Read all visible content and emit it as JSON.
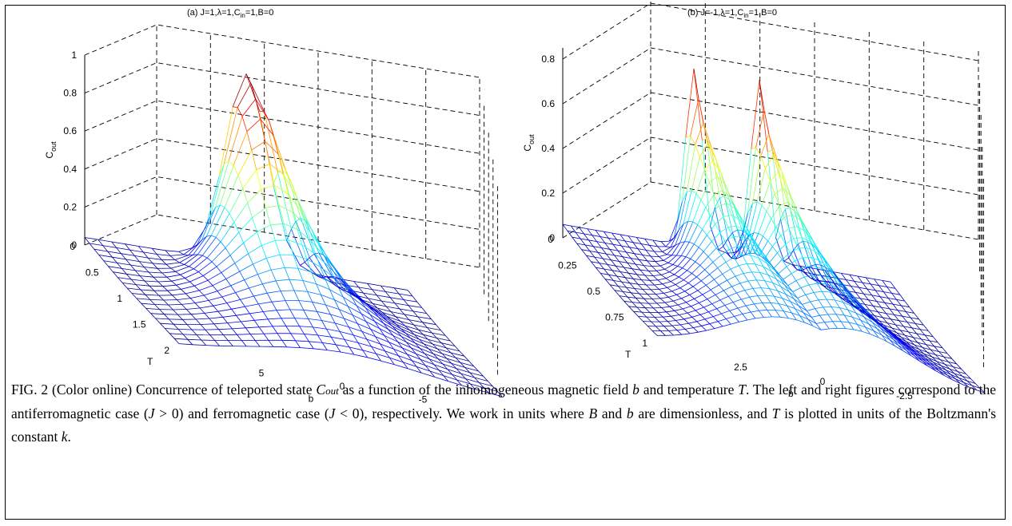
{
  "chart_data": [
    {
      "type": "surface",
      "panel": "(a)",
      "title_parts": {
        "prefix": "(a)  J=1,",
        "lambda": "λ",
        "mid": "=1,C",
        "sub": "in",
        "suffix": "=1,B=0"
      },
      "zlabel": {
        "main": "C",
        "sub": "out"
      },
      "xlabel": "T",
      "ylabel": "b",
      "z_ticks": [
        "0",
        "0.2",
        "0.4",
        "0.6",
        "0.8",
        "1"
      ],
      "t_ticks": [
        "0",
        "0.5",
        "1",
        "1.5",
        "2"
      ],
      "b_ticks": [
        "5",
        "0",
        "-5"
      ],
      "zlim": [
        0,
        1
      ],
      "tlim": [
        0,
        2
      ],
      "blim": [
        10,
        -10
      ],
      "peak": {
        "b": 0,
        "T": 0,
        "z": 1.0
      },
      "grid": true,
      "colormap": "jet"
    },
    {
      "type": "surface",
      "panel": "(b)",
      "title_parts": {
        "prefix": "(b)  J=-1,",
        "lambda": "λ",
        "mid": "=1,C",
        "sub": "in",
        "suffix": "=1,B=0"
      },
      "zlabel": {
        "main": "C",
        "sub": "out"
      },
      "xlabel": "T",
      "ylabel": "b",
      "z_ticks": [
        "0",
        "0.2",
        "0.4",
        "0.6",
        "0.8"
      ],
      "t_ticks": [
        "0",
        "0.25",
        "0.5",
        "0.75",
        "1"
      ],
      "b_ticks": [
        "2.5",
        "0",
        "-2.5"
      ],
      "zlim": [
        0,
        0.85
      ],
      "tlim": [
        0,
        1
      ],
      "blim": [
        5,
        -5
      ],
      "peaks": [
        {
          "b": 1,
          "T": 0,
          "z": 0.8
        },
        {
          "b": -1,
          "T": 0,
          "z": 0.8
        }
      ],
      "grid": true,
      "colormap": "jet"
    }
  ],
  "caption": {
    "p1": "FIG. 2 (Color online) Concurrence of teleported state",
    "c": "C",
    "c_sub": "out",
    "p2": "as a function of the inhomogeneous magnetic field",
    "b": "b",
    "p3": "and temperature",
    "t": "T",
    "p4": ". The left and right figures correspond to the antiferromagnetic case (",
    "j1": "J",
    "gt": " > 0",
    "p5": ") and ferromagnetic case (",
    "j2": "J",
    "lt": " < 0",
    "p6": "), respectively. We work in units where",
    "bb": "B",
    "p7": "and",
    "b2": "b",
    "p8": "are dimensionless, and",
    "t2": "T",
    "p9": "is plotted in units of the Boltzmann's constant",
    "k": "k",
    "p10": "."
  }
}
